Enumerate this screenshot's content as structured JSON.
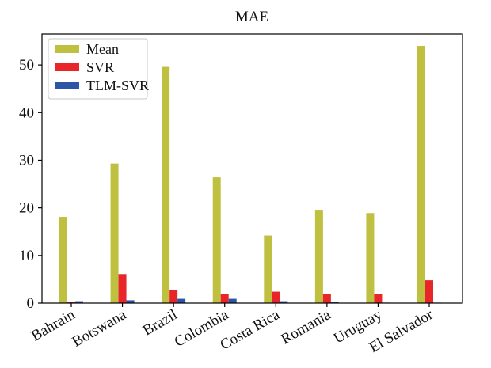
{
  "chart_data": {
    "type": "bar",
    "title": "MAE",
    "xlabel": "",
    "ylabel": "",
    "categories": [
      "Bahrain",
      "Botswana",
      "Brazil",
      "Colombia",
      "Costa Rica",
      "Romania",
      "Uruguay",
      "El Salvador"
    ],
    "series": [
      {
        "name": "Mean",
        "color": "#bfbf40",
        "values": [
          18.1,
          29.3,
          49.6,
          26.4,
          14.2,
          19.6,
          18.9,
          54.0
        ]
      },
      {
        "name": "SVR",
        "color": "#e8262a",
        "values": [
          0.3,
          6.1,
          2.7,
          1.9,
          2.4,
          1.9,
          1.9,
          4.8
        ]
      },
      {
        "name": "TLM-SVR",
        "color": "#2b56a8",
        "values": [
          0.4,
          0.6,
          0.9,
          0.9,
          0.4,
          0.3,
          0.1,
          0.1
        ]
      }
    ],
    "ylim": [
      0,
      56.5
    ],
    "yticks": [
      0,
      10,
      20,
      30,
      40,
      50
    ],
    "legend_position": "top-left",
    "grid": false
  }
}
